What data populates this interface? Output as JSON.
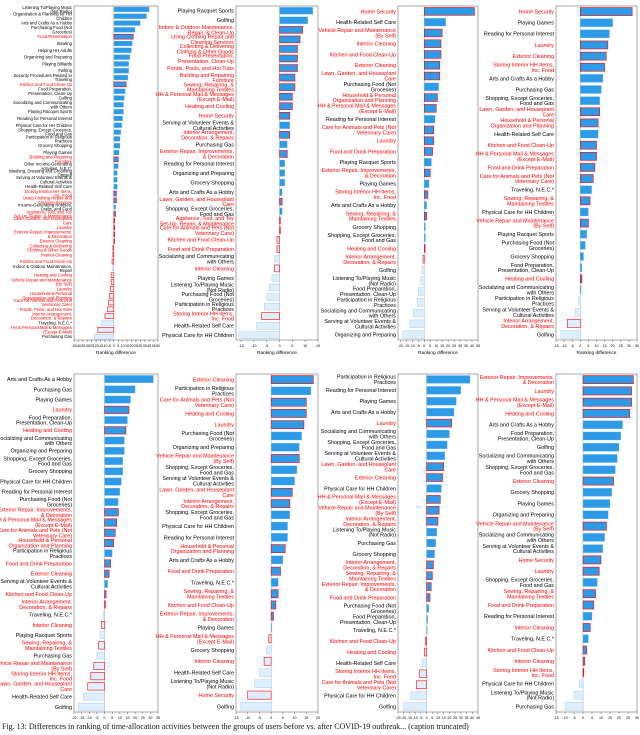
{
  "figure": {
    "caption": "Fig. 13: Differences in ranking of time-allocation activities between the groups of users before vs. after COVID-19 outbreak... (caption truncated)"
  },
  "colors": {
    "positive": "#2e9be8",
    "negative": "#ddeeff",
    "highlight": "#ff0000",
    "text": "#000000"
  },
  "chart_data": [
    {
      "type": "bar",
      "orientation": "horizontal",
      "xlabel": "Ranking difference",
      "ticks": [
        -45,
        -40,
        -35,
        -30,
        -25,
        -20,
        -15,
        -10,
        -5,
        0,
        5,
        10,
        15,
        20,
        25,
        30,
        35,
        40,
        45,
        50
      ],
      "xlim": [
        -45,
        50
      ],
      "categories": [
        "Listening To/Playing Music (Not Radio)",
        "Organization & Planning for HH Children",
        "Arts and Crafts As a Hobby",
        "Purchasing Food (Not Groceries)",
        "Food Presentation",
        "Bowling",
        "Helping HH Adults",
        "Organizing and Preparing",
        "Playing Billiards",
        "Fishing",
        "Security Procedures Related to Traveling",
        "Kitchen and Food Clean-Up",
        "Food Preparation, Presentation, Clean-Up",
        "Golfing",
        "Socializing and Communicating with Others",
        "Playing Racquet Sports",
        "Reading for Personal Interest",
        "Physical Care for HH Children",
        "Shopping, Except Groceries, Food and Gas",
        "Participation in Religious Practices",
        "Grocery Shopping",
        "Playing Games",
        "Building and Repairing Furniture",
        "Other Income-Generating Activities, N.E.C.",
        "Washing, Dressing and Grooming Oneself",
        "Serving at Volunteer Events & Cultural Activities",
        "Health-Related Self Care",
        "Storing Interior HH Items, Inc. Food",
        "Using Clothing Repair and Cleaning Services",
        "Income-Generating Hobbies, Crafts, and Food",
        "Appliance, Tool, and Toy Set-Up, Repair, & Maintenance (By Self)",
        "Lawn, Garden, and Houseplant Care",
        "Laundry",
        "Exterior Repair, Improvements, & Decoration",
        "Exterior Cleaning",
        "Collecting & Delivering Clothing & Other Goods",
        "Interior Cleaning",
        "Kitchen and Food Clean-Up",
        "Indoor & Outdoor Maintenance, Repair",
        "Heating and Cooling",
        "Vehicle Repair and Maintenance (By Self)",
        "Laundry",
        "Household & Personal Organization and Planning",
        "Care for Animals and Pets (Not Veterinary Care)",
        "Ponds, Pools, and Hot Tubs",
        "Interior Arrangement, Decoration, & Repairs",
        "Traveling, N.E.C.*",
        "HH & Personal Mail & Messages (Except E-Mail)",
        "Purchasing Gas"
      ],
      "values": [
        40,
        37,
        30,
        24,
        22,
        21,
        20,
        18,
        17,
        17,
        16,
        14,
        13,
        12,
        11,
        11,
        10,
        9,
        8,
        7,
        7,
        6,
        5,
        5,
        4,
        4,
        4,
        3,
        3,
        2,
        2,
        1,
        1,
        1,
        0,
        -1,
        -1,
        -2,
        -2,
        -3,
        -3,
        -4,
        -5,
        -6,
        -7,
        -10,
        -14,
        -18,
        -22
      ]
    },
    {
      "type": "bar",
      "orientation": "horizontal",
      "xlabel": "Ranking difference",
      "ticks": [
        -15,
        -10,
        -5,
        0,
        5,
        10,
        15
      ],
      "xlim": [
        -17,
        15
      ],
      "categories": [
        "Playing Racquet Sports",
        "Golfing",
        "Indoor & Outdoor Maintenance, Repair, & Clean-Up",
        "Using Clothing Repair and Cleaning Services",
        "Collecting & Delivering Clothing & Other Goods",
        "Food Presentation, Presentation, Clean-Up",
        "Ponds, Pools, and Hot Tubs",
        "Building and Repairing Furniture",
        "Sewing, Repairing, & Maintaining Textiles",
        "HH & Personal Mail & Messages (Except E-Mail)",
        "Heating and Cooling",
        "Home Security",
        "Serving at Volunteer Events & Cultural Activities",
        "Interior Arrangement, Decoration, & Repairs",
        "Purchasing Gas",
        "Exterior Repair, Improvements, & Decoration",
        "Reading for Personal Interest",
        "Organizing and Preparing",
        "Grocery Shopping",
        "Arts and Crafts As a Hobby",
        "Lawn, Garden, and Houseplant Care",
        "Shopping, Except Groceries, Food and Gas",
        "Appliance, Tool, and Toy Set-Up, Repair, & Maintenance (By Self)",
        "Care for Animals and Pets (Not Veterinary Care)",
        "Kitchen and Food Clean-Up",
        "Food and Drink Preparation",
        "Socializing and Communicating with Others",
        "Interior Cleaning",
        "Playing Games",
        "Listening To/Playing Music (Not Radio)",
        "Purchasing Food (Not Groceries)",
        "Participation in Religious Practices",
        "Storing Interior HH Items, Inc. Food",
        "Health-Related Self Care",
        "Physical Care for HH Children"
      ],
      "values": [
        13,
        11,
        9,
        8,
        7,
        7,
        7,
        6,
        6,
        5,
        5,
        4,
        4,
        4,
        3,
        3,
        2,
        2,
        2,
        1,
        1,
        1,
        0,
        0,
        -1,
        -1,
        -2,
        -2,
        -3,
        -4,
        -5,
        -6,
        -7,
        -9,
        -16
      ]
    },
    {
      "type": "bar",
      "orientation": "horizontal",
      "xlabel": "Ranking difference",
      "ticks": [
        -20,
        -15,
        -10,
        -5,
        0,
        5,
        10,
        15,
        20,
        25,
        30,
        35,
        40,
        45
      ],
      "xlim": [
        -22,
        45
      ],
      "categories": [
        "Home Security",
        "Health-Related Self Care",
        "Vehicle Repair and Maintenance (By Self)",
        "Interior Cleaning",
        "Kitchen and Food Clean-Up",
        "Exterior Cleaning",
        "Lawn, Garden, and Houseplant Care",
        "Purchasing Food (Not Groceries)",
        "Household & Personal Organization and Planning",
        "HH & Personal Mail & Messages (Except E-Mail)",
        "Reading for Personal Interest",
        "Care for Animals and Pets (Not Veterinary Care)",
        "Laundry",
        "Food and Drink Preparation",
        "Playing Racquet Sports",
        "Exterior Repair, Improvements, & Decoration",
        "Playing Games",
        "Storing Interior HH Items, Inc. Food",
        "Arts and Crafts As a Hobby",
        "Sewing, Repairing, & Maintaining Textiles",
        "Grocery Shopping",
        "Shopping, Except Groceries, Food and Gas",
        "Heating and Cooling",
        "Interior Arrangement, Decoration, & Repairs",
        "Golfing",
        "Listening To/Playing Music (Not Radio)",
        "Food Preparation, Presentation, Clean-Up",
        "Participation in Religious Practices",
        "Socializing and Communicating with Others",
        "Serving at Volunteer Events & Cultural Activities",
        "Organizing and Preparing"
      ],
      "values": [
        42,
        18,
        15,
        14,
        14,
        13,
        13,
        12,
        11,
        10,
        9,
        8,
        8,
        7,
        6,
        5,
        4,
        3,
        2,
        2,
        1,
        1,
        0,
        -1,
        -2,
        -3,
        -5,
        -6,
        -9,
        -12,
        -18
      ]
    },
    {
      "type": "bar",
      "orientation": "horizontal",
      "xlabel": "Ranking difference",
      "ticks": [
        -15,
        -10,
        -5,
        0,
        5,
        10,
        15,
        20,
        25,
        30,
        35
      ],
      "xlim": [
        -15,
        35
      ],
      "categories": [
        "Home Security",
        "Playing Games",
        "Reading for Personal Interest",
        "Laundry",
        "Exterior Cleaning",
        "Storing Interior HH Items, Inc. Food",
        "Arts and Crafts As a Hobby",
        "Purchasing Gas",
        "Shopping, Except Groceries, Food and Gas",
        "Lawn, Garden, and Houseplant Care",
        "Household & Personal Organization and Planning",
        "Health-Related Self Care",
        "Kitchen and Food Clean-Up",
        "HH & Personal Mail & Messages (Except E-Mail)",
        "Food and Drink Preparation",
        "Care for Animals and Pets (Not Veterinary Care)",
        "Traveling, N.E.C.*",
        "Sewing, Repairing, & Maintaining Textiles",
        "Physical Care for HH Children",
        "Vehicle Repair and Maintenance (By Self)",
        "Playing Racquet Sports",
        "Purchasing Food (Not Groceries)",
        "Grocery Shopping",
        "Food Preparation, Presentation, Clean-Up",
        "Heating and Cooling",
        "Socializing and Communicating with Others",
        "Participation in Religious Practices",
        "Serving at Volunteer Events & Cultural Activities",
        "Interior Arrangement, Decoration, & Repairs",
        "Golfing"
      ],
      "values": [
        32,
        20,
        18,
        17,
        16,
        15,
        14,
        13,
        12,
        12,
        11,
        11,
        10,
        10,
        9,
        8,
        7,
        6,
        5,
        5,
        4,
        3,
        2,
        1,
        1,
        0,
        -1,
        -3,
        -8,
        -12
      ]
    },
    {
      "type": "bar",
      "orientation": "horizontal",
      "xlabel": "Ranking difference",
      "ticks": [
        -20,
        -15,
        -10,
        -5,
        0,
        5,
        10,
        15,
        20,
        25,
        30,
        35
      ],
      "xlim": [
        -20,
        35
      ],
      "categories": [
        "Arts and Crafts As a Hobby",
        "Purchasing Gas",
        "Playing Games",
        "Laundry",
        "Food Preparation, Presentation, Clean-Up",
        "Heating and Cooling",
        "Socializing and Communicating with Others",
        "Organizing and Preparing",
        "Shopping, Except Groceries, Food and Gas",
        "Grocery Shopping",
        "Physical Care for HH Children",
        "Reading for Personal Interest",
        "Purchasing Food (Not Groceries)",
        "Exterior Repair, Improvements, & Decoration",
        "HH & Personal Mail & Messages (Except E-Mail)",
        "Care for Animals and Pets (Not Veterinary Care)",
        "Household & Personal Organization and Planning",
        "Participation in Religious Practices",
        "Food and Drink Preparation",
        "Exterior Cleaning",
        "Serving at Volunteer Events & Cultural Activities",
        "Kitchen and Food Clean-Up",
        "Interior Arrangement, Decoration, & Repairs",
        "Traveling, N.E.C.*",
        "Interior Cleaning",
        "Playing Racquet Sports",
        "Sewing, Repairing, & Maintaining Textiles",
        "Purchasing Gas",
        "Vehicle Repair and Maintenance (By Self)",
        "Storing Interior HH Items, Inc. Food",
        "Lawn, Garden, and Houseplant Care",
        "Health-Related Self Care",
        "Golfing"
      ],
      "values": [
        32,
        20,
        17,
        16,
        15,
        14,
        13,
        13,
        12,
        12,
        11,
        10,
        9,
        9,
        8,
        7,
        6,
        5,
        4,
        3,
        2,
        1,
        0,
        -1,
        -2,
        -3,
        -4,
        -5,
        -7,
        -9,
        -11,
        -14,
        -17
      ]
    },
    {
      "type": "bar",
      "orientation": "horizontal",
      "xlabel": "Ranking difference",
      "ticks": [
        -15,
        -10,
        -5,
        0,
        5,
        10,
        15,
        20
      ],
      "xlim": [
        -15,
        20
      ],
      "categories": [
        "Exterior Cleaning",
        "Participation in Religious Practices",
        "Care for Animals and Pets (Not Veterinary Care)",
        "Heating and Cooling",
        "Laundry",
        "Purchasing Food (Not Groceries)",
        "Organizing and Preparing",
        "Vehicle Repair and Maintenance (By Self)",
        "Shopping, Except Groceries, Food and Gas",
        "Serving at Volunteer Events & Cultural Activities",
        "Lawn, Garden, and Houseplant Care",
        "Interior Arrangement, Decoration, & Repairs",
        "Shopping, Except Groceries, Food and Gas",
        "Physical Care for HH Children",
        "Reading for Personal Interest",
        "Household & Personal Organization and Planning",
        "Arts and Crafts As a Hobby",
        "Food and Drink Preparation",
        "Traveling, N.E.C.*",
        "Sewing, Repairing, & Maintaining Textiles",
        "Kitchen and Food Clean-Up",
        "Exterior Repair, Improvements, & Decoration",
        "Playing Games",
        "HH & Personal Mail & Messages (Except E-Mail)",
        "Grocery Shopping",
        "Interior Cleaning",
        "Health-Related Self Care",
        "Listening To/Playing Music (Not Radio)",
        "Home Security",
        "Golfing"
      ],
      "values": [
        18,
        17,
        15,
        15,
        14,
        13,
        12,
        12,
        11,
        10,
        9,
        8,
        8,
        7,
        7,
        6,
        5,
        4,
        3,
        3,
        2,
        1,
        0,
        -1,
        -2,
        -3,
        -5,
        -7,
        -10,
        -13
      ]
    },
    {
      "type": "bar",
      "orientation": "horizontal",
      "xlabel": "Ranking difference",
      "ticks": [
        -25,
        -20,
        -15,
        -10,
        -5,
        0,
        5,
        10,
        15,
        20,
        25,
        30,
        35,
        40,
        45
      ],
      "xlim": [
        -25,
        45
      ],
      "categories": [
        "Participation in Religious Practices",
        "Reading for Personal Interest",
        "Playing Games",
        "Arts and Crafts As a Hobby",
        "Laundry",
        "Socializing and Communicating with Others",
        "Shopping, Except Groceries, Food and Gas",
        "Serving at Volunteer Events & Cultural Activities",
        "Lawn, Garden, and Houseplant Care",
        "Exterior Cleaning",
        "Physical Care for HH Children",
        "HH & Personal Mail & Messages (Except E-Mail)",
        "Vehicle Repair and Maintenance (By Self)",
        "Interior Arrangement, Decoration, & Repairs",
        "Listening To/Playing Music (Not Radio)",
        "Purchasing Gas",
        "Grocery Shopping",
        "Interior Arrangement, Decoration, & Repairs",
        "Sewing, Repairing, & Maintaining Textiles",
        "Exterior Repair, Improvements, & Decoration",
        "Food and Drink Preparation",
        "Purchasing Food (Not Groceries)",
        "Food Preparation, Presentation, Clean-Up",
        "Traveling, N.E.C.*",
        "Kitchen and Food Clean-Up",
        "Heating and Cooling",
        "Health-Related Self Care",
        "Storing Interior HH Items, Inc. Food",
        "Care for Animals and Pets (Not Veterinary Care)",
        "Physical Care for HH Children",
        "Golfing"
      ],
      "values": [
        38,
        30,
        26,
        24,
        22,
        20,
        18,
        16,
        15,
        14,
        13,
        12,
        11,
        10,
        9,
        8,
        7,
        6,
        5,
        4,
        3,
        2,
        1,
        0,
        -1,
        -2,
        -4,
        -6,
        -9,
        -14,
        -20
      ]
    },
    {
      "type": "bar",
      "orientation": "horizontal",
      "xlabel": "Ranking difference",
      "ticks": [
        -15,
        -10,
        -5,
        0,
        5,
        10,
        15,
        20,
        25,
        30
      ],
      "xlim": [
        -15,
        30
      ],
      "categories": [
        "Exterior Repair, Improvements, & Decoration",
        "Laundry",
        "HH & Personal Mail & Messages (Except E-Mail)",
        "Heating and Cooling",
        "Arts and Crafts As a Hobby",
        "Food Preparation, Presentation, Clean-Up",
        "Golfing",
        "Socializing and Communicating with Others",
        "Shopping, Except Groceries, Food and Gas",
        "Exterior Cleaning",
        "Grocery Shopping",
        "Playing Games",
        "Organizing and Preparing",
        "Vehicle Repair and Maintenance (By Self)",
        "Socializing and Communicating with Others",
        "Serving at Volunteer Events & Cultural Activities",
        "Home Security",
        "Laundry",
        "Shopping, Except Groceries, Food and Gas",
        "Sewing, Repairing, & Maintaining Textiles",
        "Food and Drink Preparation",
        "Reading for Personal Interest",
        "Interior Cleaning",
        "Traveling, N.E.C.*",
        "Kitchen and Food Clean-Up",
        "Interior Cleaning",
        "Storing Interior HH Items, Inc. Food",
        "Physical Care for HH Children",
        "Listening To/Playing Music (Not Radio)",
        "Purchasing Gas"
      ],
      "values": [
        28,
        27,
        27,
        26,
        22,
        21,
        20,
        19,
        18,
        17,
        16,
        15,
        14,
        13,
        12,
        11,
        10,
        9,
        8,
        7,
        6,
        5,
        4,
        3,
        2,
        1,
        0,
        -2,
        -5,
        -10
      ]
    }
  ]
}
